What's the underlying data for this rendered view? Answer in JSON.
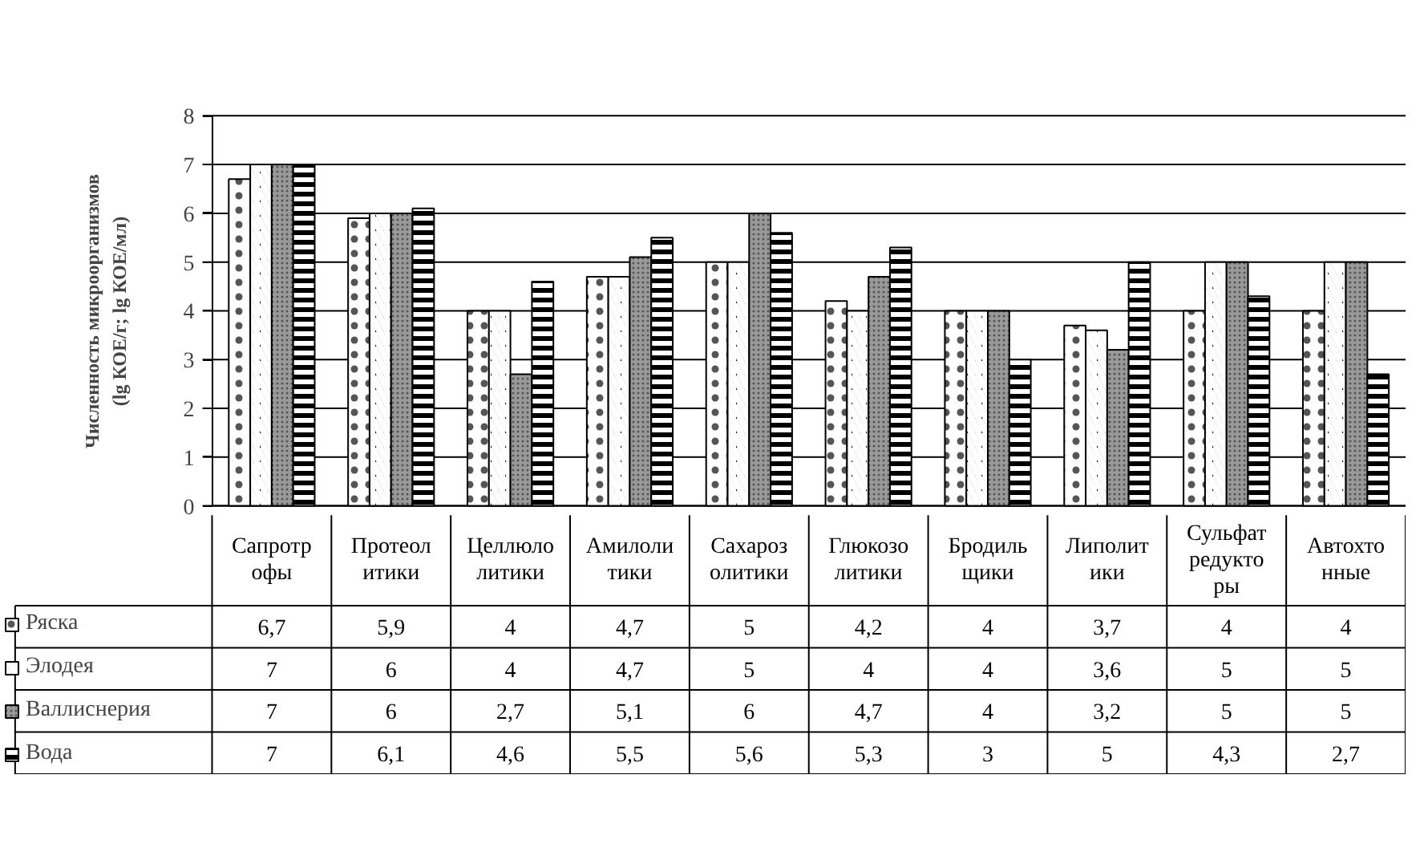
{
  "chart_data": {
    "type": "bar",
    "ylabel": "Численность микроорганизмов\n(lg КОЕ/г; lg КОЕ/мл)",
    "categories": [
      "Сапротрофы",
      "Протеолитики",
      "Целлюлолитики",
      "Амилолитики",
      "Сахарозолитики",
      "Глюкозолитики",
      "Бродильщики",
      "Липолитики",
      "Сульфатредукторы",
      "Автохтонные"
    ],
    "series": [
      {
        "name": "Ряска",
        "color": "#ffffff",
        "values": [
          6.7,
          5.9,
          4,
          4.7,
          5,
          4.2,
          4,
          3.7,
          4,
          4
        ],
        "value_labels": [
          "6,7",
          "5,9",
          "4",
          "4,7",
          "5",
          "4,2",
          "4",
          "3,7",
          "4",
          "4"
        ]
      },
      {
        "name": "Элодея",
        "color": "#000000",
        "values": [
          7,
          6,
          4,
          4.7,
          5,
          4,
          4,
          3.6,
          5,
          5
        ],
        "value_labels": [
          "7",
          "6",
          "4",
          "4,7",
          "5",
          "4",
          "4",
          "3,6",
          "5",
          "5"
        ]
      },
      {
        "name": "Валлиснерия",
        "color": "#999999",
        "values": [
          7,
          6,
          2.7,
          5.1,
          6,
          4.7,
          4,
          3.2,
          5,
          5
        ],
        "value_labels": [
          "7",
          "6",
          "2,7",
          "5,1",
          "6",
          "4,7",
          "4",
          "3,2",
          "5",
          "5"
        ]
      },
      {
        "name": "Вода",
        "color": "#000000",
        "values": [
          7,
          6.1,
          4.6,
          5.5,
          5.6,
          5.3,
          3,
          5,
          4.3,
          2.7
        ],
        "value_labels": [
          "7",
          "6,1",
          "4,6",
          "5,5",
          "5,6",
          "5,3",
          "3",
          "5",
          "4,3",
          "2,7"
        ]
      }
    ],
    "ylim": [
      0,
      8
    ],
    "yticks": [
      0,
      1,
      2,
      3,
      4,
      5,
      6,
      7,
      8
    ],
    "grid": "y",
    "legend": "bottom left"
  }
}
